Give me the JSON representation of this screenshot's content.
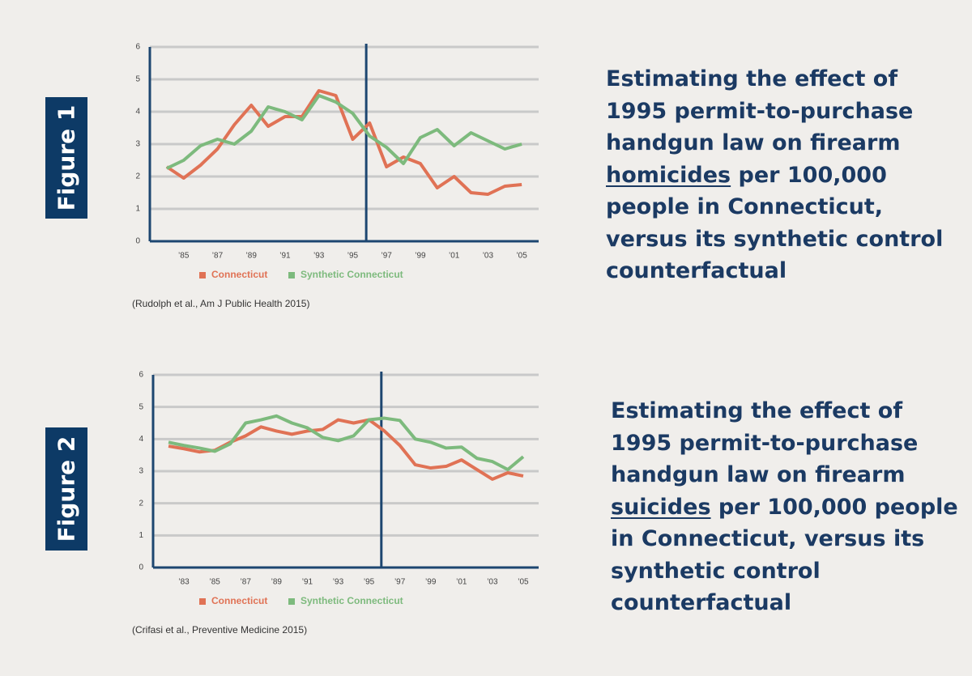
{
  "chart_data": [
    {
      "type": "line",
      "x": [
        1984,
        1985,
        1986,
        1987,
        1988,
        1989,
        1990,
        1991,
        1992,
        1993,
        1994,
        1995,
        1996,
        1997,
        1998,
        1999,
        2000,
        2001,
        2002,
        2003,
        2004,
        2005
      ],
      "series": [
        {
          "name": "Connecticut",
          "color": "#e07255",
          "values": [
            2.3,
            1.95,
            2.35,
            2.85,
            3.6,
            4.2,
            3.55,
            3.85,
            3.85,
            4.65,
            4.5,
            3.15,
            3.65,
            2.3,
            2.6,
            2.4,
            1.65,
            2.0,
            1.5,
            1.45,
            1.7,
            1.75
          ]
        },
        {
          "name": "Synthetic Connecticut",
          "color": "#7dba7d",
          "values": [
            2.25,
            2.5,
            2.95,
            3.15,
            3.0,
            3.4,
            4.15,
            4.0,
            3.75,
            4.5,
            4.3,
            3.95,
            3.25,
            2.9,
            2.4,
            3.2,
            3.45,
            2.95,
            3.35,
            3.1,
            2.85,
            3.0
          ]
        }
      ],
      "xlim": [
        1983,
        2006
      ],
      "xticks": [
        {
          "value": 1985,
          "label": "’85"
        },
        {
          "value": 1987,
          "label": "’87"
        },
        {
          "value": 1989,
          "label": "’89"
        },
        {
          "value": 1991,
          "label": "’91"
        },
        {
          "value": 1993,
          "label": "’93"
        },
        {
          "value": 1995,
          "label": "’95"
        },
        {
          "value": 1997,
          "label": "’97"
        },
        {
          "value": 1999,
          "label": "’99"
        },
        {
          "value": 2001,
          "label": "’01"
        },
        {
          "value": 2003,
          "label": "’03"
        },
        {
          "value": 2005,
          "label": "’05"
        }
      ],
      "ylim": [
        0,
        6
      ],
      "yticks": [
        0,
        1,
        2,
        3,
        4,
        5,
        6
      ],
      "grid": true,
      "vline_x": 1995.8
    },
    {
      "type": "line",
      "x": [
        1982,
        1983,
        1984,
        1985,
        1986,
        1987,
        1988,
        1989,
        1990,
        1991,
        1992,
        1993,
        1994,
        1995,
        1996,
        1997,
        1998,
        1999,
        2000,
        2001,
        2002,
        2003,
        2004,
        2005
      ],
      "series": [
        {
          "name": "Connecticut",
          "color": "#e07255",
          "values": [
            3.78,
            3.7,
            3.6,
            3.65,
            3.9,
            4.1,
            4.38,
            4.25,
            4.15,
            4.25,
            4.3,
            4.6,
            4.5,
            4.6,
            4.25,
            3.8,
            3.2,
            3.1,
            3.15,
            3.35,
            3.05,
            2.75,
            2.95,
            2.85
          ]
        },
        {
          "name": "Synthetic Connecticut",
          "color": "#7dba7d",
          "values": [
            3.9,
            3.8,
            3.72,
            3.62,
            3.85,
            4.5,
            4.6,
            4.72,
            4.5,
            4.35,
            4.05,
            3.95,
            4.1,
            4.6,
            4.65,
            4.58,
            4.0,
            3.9,
            3.72,
            3.75,
            3.4,
            3.3,
            3.05,
            3.45
          ]
        }
      ],
      "xlim": [
        1981,
        2006
      ],
      "xticks": [
        {
          "value": 1983,
          "label": "’83"
        },
        {
          "value": 1985,
          "label": "’85"
        },
        {
          "value": 1987,
          "label": "’87"
        },
        {
          "value": 1989,
          "label": "’89"
        },
        {
          "value": 1991,
          "label": "’91"
        },
        {
          "value": 1993,
          "label": "’93"
        },
        {
          "value": 1995,
          "label": "’95"
        },
        {
          "value": 1997,
          "label": "’97"
        },
        {
          "value": 1999,
          "label": "’99"
        },
        {
          "value": 2001,
          "label": "’01"
        },
        {
          "value": 2003,
          "label": "’03"
        },
        {
          "value": 2005,
          "label": "’05"
        }
      ],
      "ylim": [
        0,
        6
      ],
      "yticks": [
        0,
        1,
        2,
        3,
        4,
        5,
        6
      ],
      "grid": true,
      "vline_x": 1995.8
    }
  ],
  "panels": [
    {
      "label": "Figure 1",
      "description_before": "Estimating the effect of 1995 permit-to-purchase handgun law on firearm ",
      "description_underlined": "homicides",
      "description_after": " per 100,000 people in Connecticut, versus its synthetic control counterfactual",
      "citation": "(Rudolph et al., Am J Public Health 2015)"
    },
    {
      "label": "Figure 2",
      "description_before": "Estimating the effect of 1995 permit-to-purchase handgun law on firearm ",
      "description_underlined": "suicides",
      "description_after": " per 100,000 people in Connecticut, versus its synthetic control counterfactual",
      "citation": "(Crifasi et al., Preventive Medicine 2015)"
    }
  ]
}
